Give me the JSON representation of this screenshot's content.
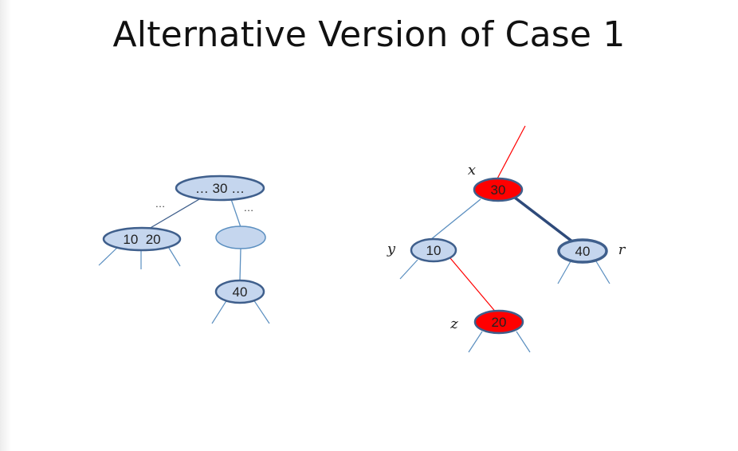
{
  "title": "Alternative Version of Case 1",
  "colors": {
    "node_fill": "#c5d6ee",
    "node_stroke": "#3f5f8c",
    "red_fill": "#ff0000",
    "red_edge": "#ff0000",
    "blue_edge": "#5b8fc0",
    "dark_edge": "#2e4a7a"
  },
  "left_tree": {
    "root_label": "… 30 …",
    "root_left_dots": "…",
    "root_right_dots": "…",
    "node_left_label": "10  20",
    "node_right_label": "",
    "node_bottom_label": "40"
  },
  "right_tree": {
    "x_label": "x",
    "y_label": "y",
    "z_label": "z",
    "r_label": "r",
    "node_x_value": "30",
    "node_y_value": "10",
    "node_z_value": "20",
    "node_r_value": "40"
  }
}
